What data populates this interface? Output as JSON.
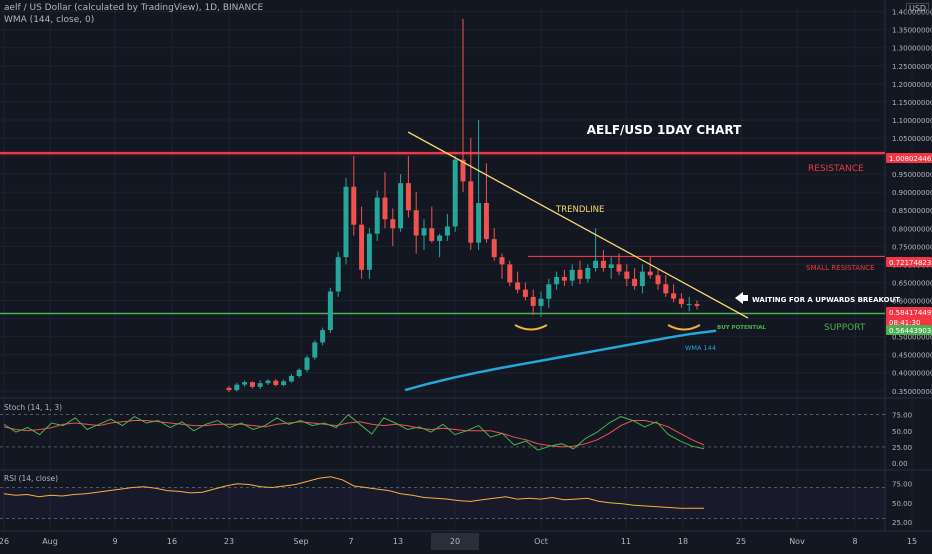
{
  "header": {
    "symbol_line": "aelf / US Dollar (calculated by TradingView), 1D, BINANCE",
    "indicator_line": "WMA (144, close, 0)",
    "currency": "USD"
  },
  "chart_data": {
    "type": "candlestick",
    "title": "AELF/USD 1DAY CHART",
    "y_axis": {
      "ylim": [
        0.33,
        1.41
      ],
      "ticks": [
        "0.35000000",
        "0.40000000",
        "0.45000000",
        "0.50000000",
        "0.55000000",
        "0.60000000",
        "0.65000000",
        "0.70000000",
        "0.75000000",
        "0.80000000",
        "0.85000000",
        "0.90000000",
        "0.95000000",
        "1.00000000",
        "1.05000000",
        "1.10000000",
        "1.15000000",
        "1.20000000",
        "1.25000000",
        "1.30000000",
        "1.35000000",
        "1.40000000"
      ]
    },
    "x_axis": {
      "tick_labels": [
        "26",
        "Aug",
        "9",
        "16",
        "23",
        "Sep",
        "7",
        "13",
        "20",
        "Oct",
        "11",
        "18",
        "25",
        "Nov",
        "8",
        "15"
      ],
      "highlight_label": "20"
    },
    "price_labels": [
      {
        "text": "1.00802446",
        "color": "#f23645"
      },
      {
        "text": "0.72174823",
        "color": "#f23645"
      },
      {
        "text": "0.58417449",
        "color": "#f23645"
      },
      {
        "text": "08:41:30",
        "color": "#f23645"
      },
      {
        "text": "0.56443903",
        "color": "#4caf50"
      }
    ],
    "candles_ohlc": [
      [
        0.358,
        0.364,
        0.346,
        0.352
      ],
      [
        0.352,
        0.372,
        0.348,
        0.367
      ],
      [
        0.367,
        0.378,
        0.361,
        0.374
      ],
      [
        0.374,
        0.376,
        0.356,
        0.361
      ],
      [
        0.361,
        0.379,
        0.355,
        0.371
      ],
      [
        0.371,
        0.382,
        0.366,
        0.378
      ],
      [
        0.378,
        0.383,
        0.362,
        0.366
      ],
      [
        0.366,
        0.381,
        0.362,
        0.376
      ],
      [
        0.376,
        0.396,
        0.372,
        0.391
      ],
      [
        0.391,
        0.412,
        0.386,
        0.408
      ],
      [
        0.408,
        0.448,
        0.402,
        0.442
      ],
      [
        0.442,
        0.49,
        0.436,
        0.484
      ],
      [
        0.484,
        0.525,
        0.476,
        0.518
      ],
      [
        0.518,
        0.635,
        0.51,
        0.625
      ],
      [
        0.625,
        0.735,
        0.61,
        0.72
      ],
      [
        0.72,
        0.94,
        0.7,
        0.915
      ],
      [
        0.915,
        1.0,
        0.78,
        0.81
      ],
      [
        0.81,
        0.86,
        0.66,
        0.685
      ],
      [
        0.685,
        0.8,
        0.66,
        0.785
      ],
      [
        0.785,
        0.905,
        0.765,
        0.885
      ],
      [
        0.885,
        0.955,
        0.8,
        0.825
      ],
      [
        0.825,
        0.855,
        0.75,
        0.8
      ],
      [
        0.8,
        0.95,
        0.79,
        0.925
      ],
      [
        0.925,
        1.0,
        0.83,
        0.85
      ],
      [
        0.85,
        0.9,
        0.73,
        0.78
      ],
      [
        0.78,
        0.825,
        0.74,
        0.8
      ],
      [
        0.8,
        0.86,
        0.76,
        0.765
      ],
      [
        0.765,
        0.785,
        0.72,
        0.78
      ],
      [
        0.78,
        0.84,
        0.765,
        0.805
      ],
      [
        0.805,
        1.0,
        0.79,
        0.99
      ],
      [
        0.99,
        1.38,
        0.9,
        0.93
      ],
      [
        0.93,
        1.05,
        0.74,
        0.76
      ],
      [
        0.76,
        1.1,
        0.74,
        0.87
      ],
      [
        0.87,
        0.98,
        0.76,
        0.77
      ],
      [
        0.77,
        0.8,
        0.71,
        0.72
      ],
      [
        0.72,
        0.73,
        0.66,
        0.7
      ],
      [
        0.7,
        0.71,
        0.64,
        0.65
      ],
      [
        0.65,
        0.68,
        0.62,
        0.63
      ],
      [
        0.63,
        0.65,
        0.6,
        0.61
      ],
      [
        0.61,
        0.63,
        0.56,
        0.585
      ],
      [
        0.585,
        0.625,
        0.555,
        0.605
      ],
      [
        0.605,
        0.66,
        0.58,
        0.645
      ],
      [
        0.645,
        0.68,
        0.63,
        0.665
      ],
      [
        0.665,
        0.685,
        0.64,
        0.655
      ],
      [
        0.655,
        0.7,
        0.64,
        0.685
      ],
      [
        0.685,
        0.71,
        0.645,
        0.66
      ],
      [
        0.66,
        0.7,
        0.65,
        0.69
      ],
      [
        0.69,
        0.8,
        0.68,
        0.71
      ],
      [
        0.71,
        0.74,
        0.68,
        0.69
      ],
      [
        0.69,
        0.72,
        0.66,
        0.7
      ],
      [
        0.7,
        0.73,
        0.67,
        0.68
      ],
      [
        0.68,
        0.7,
        0.64,
        0.66
      ],
      [
        0.66,
        0.69,
        0.63,
        0.64
      ],
      [
        0.64,
        0.7,
        0.62,
        0.68
      ],
      [
        0.68,
        0.72,
        0.66,
        0.67
      ],
      [
        0.67,
        0.69,
        0.63,
        0.645
      ],
      [
        0.645,
        0.67,
        0.61,
        0.62
      ],
      [
        0.62,
        0.645,
        0.595,
        0.605
      ],
      [
        0.605,
        0.62,
        0.58,
        0.59
      ],
      [
        0.59,
        0.61,
        0.57,
        0.59
      ],
      [
        0.59,
        0.6,
        0.575,
        0.585
      ]
    ],
    "wma144": [
      0.352,
      0.37,
      0.386,
      0.4,
      0.413,
      0.425,
      0.437,
      0.449,
      0.461,
      0.473,
      0.485,
      0.497,
      0.508,
      0.516
    ],
    "support_level": 0.564,
    "resistance_level": 1.008,
    "small_resistance_level": 0.722,
    "annotations": {
      "resistance": "RESISTANCE",
      "small_resistance": "SMALL RESISTANCE",
      "trendline": "TRENDLINE",
      "waiting": "WAITING FOR A UPWARDS BREAKOUT",
      "buy_potential": "BUY POTENTIAL",
      "support": "SUPPORT",
      "wma": "WMA 144"
    },
    "stoch": {
      "label": "Stoch (14, 1, 3)",
      "ticks": [
        "75.00",
        "50.00",
        "25.00",
        "0.00"
      ],
      "k": [
        60,
        48,
        55,
        44,
        62,
        58,
        70,
        52,
        60,
        68,
        58,
        72,
        62,
        66,
        55,
        64,
        50,
        60,
        66,
        55,
        62,
        52,
        58,
        70,
        60,
        66,
        58,
        62,
        55,
        75,
        60,
        45,
        70,
        62,
        52,
        56,
        48,
        60,
        44,
        50,
        58,
        40,
        46,
        28,
        34,
        20,
        26,
        30,
        22,
        38,
        48,
        62,
        72,
        66,
        56,
        64,
        44,
        34,
        26,
        22
      ],
      "d": [
        56,
        52,
        50,
        52,
        55,
        60,
        62,
        60,
        58,
        62,
        64,
        66,
        66,
        64,
        62,
        60,
        58,
        58,
        60,
        60,
        60,
        58,
        56,
        60,
        62,
        64,
        62,
        60,
        58,
        62,
        64,
        60,
        58,
        60,
        58,
        54,
        52,
        54,
        52,
        50,
        50,
        50,
        46,
        40,
        36,
        30,
        27,
        25,
        26,
        30,
        36,
        46,
        58,
        66,
        66,
        62,
        56,
        46,
        36,
        28
      ]
    },
    "rsi": {
      "label": "RSI (14, close)",
      "ticks": [
        "75.00",
        "50.00",
        "25.00"
      ],
      "values": [
        62,
        60,
        61,
        58,
        60,
        59,
        61,
        62,
        64,
        66,
        68,
        70,
        71,
        69,
        66,
        65,
        63,
        64,
        68,
        72,
        75,
        74,
        71,
        70,
        72,
        74,
        78,
        82,
        84,
        80,
        72,
        70,
        68,
        66,
        62,
        60,
        57,
        56,
        55,
        53,
        52,
        54,
        56,
        58,
        55,
        56,
        55,
        57,
        54,
        55,
        56,
        52,
        50,
        49,
        47,
        46,
        45,
        44,
        43,
        43,
        43
      ]
    }
  }
}
